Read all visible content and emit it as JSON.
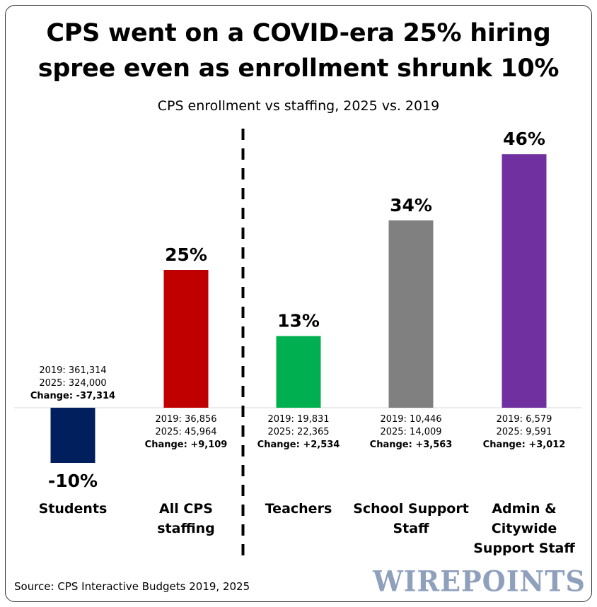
{
  "title_line1": "CPS went on a COVID-era 25% hiring",
  "title_line2": "spree even as enrollment shrunk 10%",
  "subtitle": "CPS enrollment vs staffing, 2025 vs. 2019",
  "source": "Source: CPS Interactive Budgets 2019, 2025",
  "logo": "WIREPOINTS",
  "chart_data": {
    "type": "bar",
    "title": "CPS went on a COVID-era 25% hiring spree even as enrollment shrunk 10%",
    "subtitle": "CPS enrollment vs staffing, 2025 vs. 2019",
    "unit": "%",
    "ylim": [
      -10,
      46
    ],
    "grid": false,
    "legend": "none",
    "divider_after_index": 1,
    "bars": [
      {
        "category": "Students",
        "category_lines": [
          "Students"
        ],
        "value": -10,
        "value_label": "-10%",
        "color": "#001f5c",
        "detail": [
          "2019: 361,314",
          "2025: 324,000",
          "Change: -37,314"
        ]
      },
      {
        "category": "All CPS staffing",
        "category_lines": [
          "All CPS",
          "staffing"
        ],
        "value": 25,
        "value_label": "25%",
        "color": "#c00000",
        "detail": [
          "2019: 36,856",
          "2025: 45,964",
          "Change: +9,109"
        ]
      },
      {
        "category": "Teachers",
        "category_lines": [
          "Teachers"
        ],
        "value": 13,
        "value_label": "13%",
        "color": "#00b050",
        "detail": [
          "2019: 19,831",
          "2025: 22,365",
          "Change: +2,534"
        ]
      },
      {
        "category": "School Support Staff",
        "category_lines": [
          "School Support",
          "Staff"
        ],
        "value": 34,
        "value_label": "34%",
        "color": "#808080",
        "detail": [
          "2019: 10,446",
          "2025: 14,009",
          "Change: +3,563"
        ]
      },
      {
        "category": "Admin & Citywide Support Staff",
        "category_lines": [
          "Admin &",
          "Citywide",
          "Support Staff"
        ],
        "value": 46,
        "value_label": "46%",
        "color": "#7030a0",
        "detail": [
          "2019: 6,579",
          "2025: 9,591",
          "Change: +3,012"
        ]
      }
    ]
  }
}
